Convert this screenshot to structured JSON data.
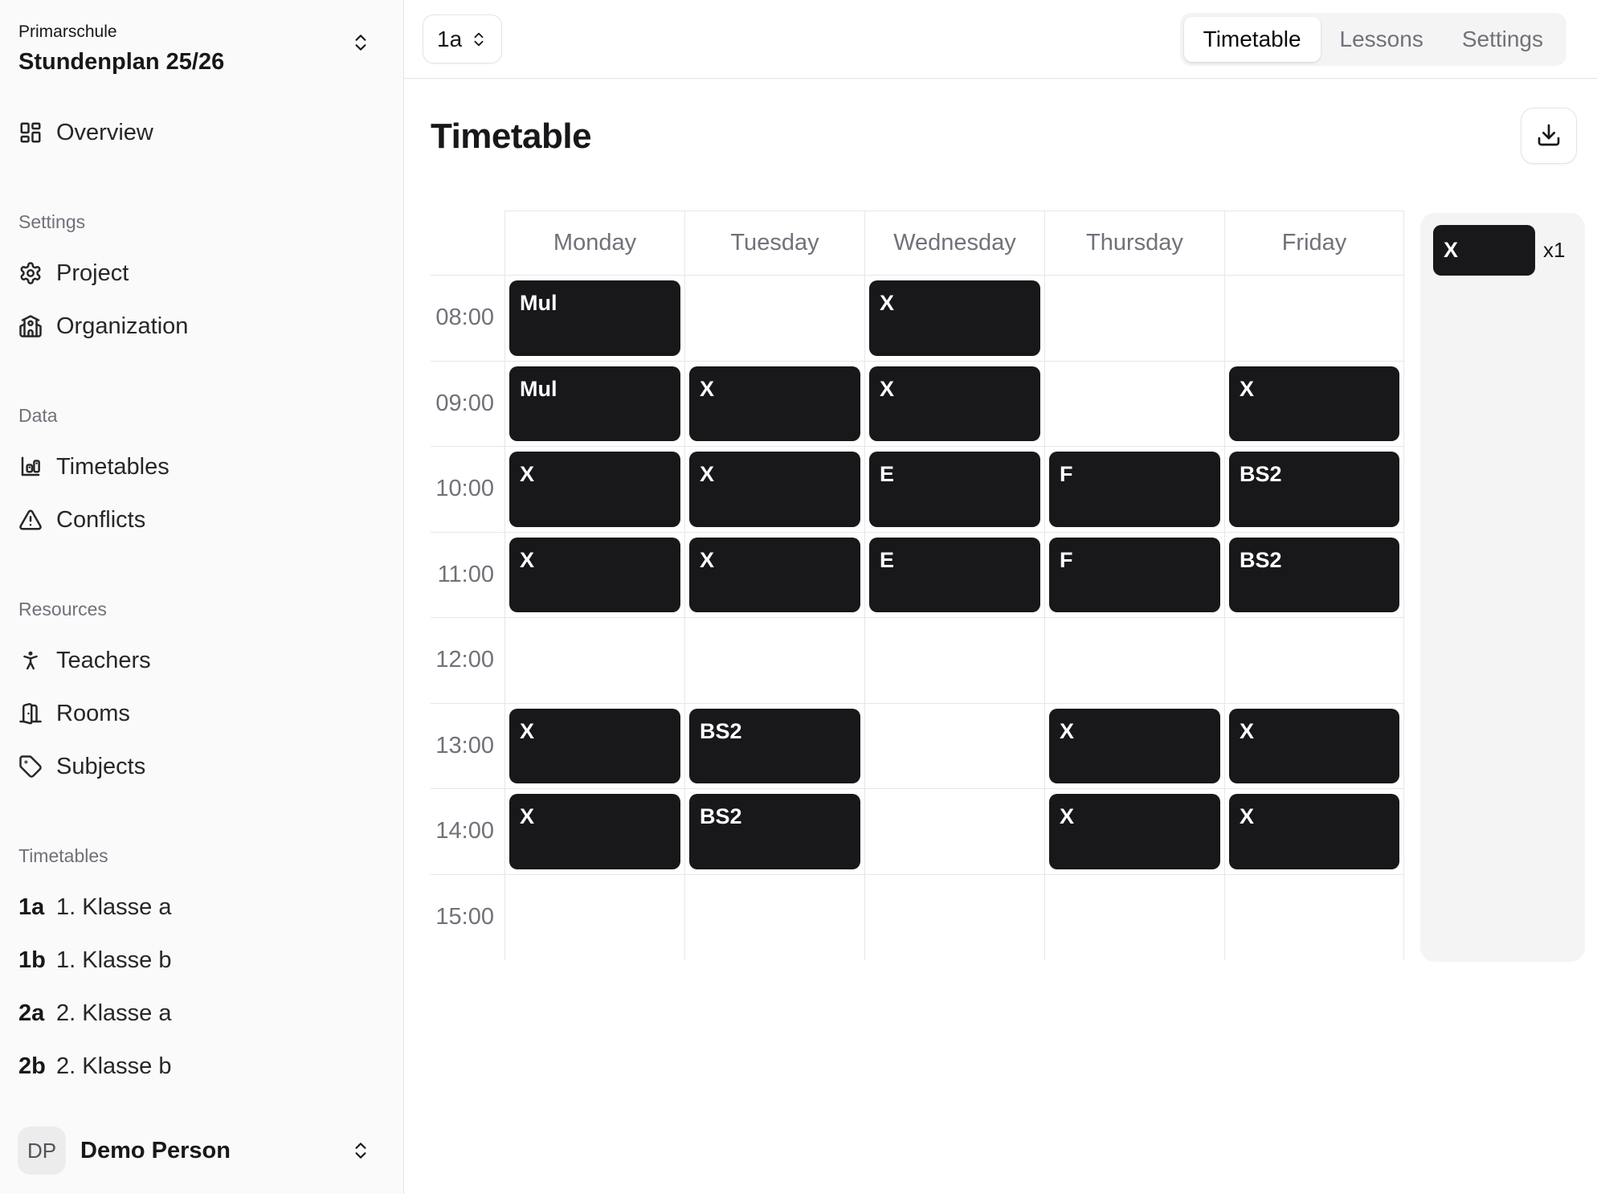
{
  "workspace": {
    "org_label": "Primarschule",
    "plan_name": "Stundenplan 25/26"
  },
  "sidebar": {
    "sections": [
      {
        "label": "",
        "items": [
          {
            "icon": "layout-dashboard",
            "label": "Overview"
          }
        ]
      },
      {
        "label": "Settings",
        "items": [
          {
            "icon": "settings-gear",
            "label": "Project"
          },
          {
            "icon": "school-building",
            "label": "Organization"
          }
        ]
      },
      {
        "label": "Data",
        "items": [
          {
            "icon": "bar-chart",
            "label": "Timetables"
          },
          {
            "icon": "warning-triangle",
            "label": "Conflicts"
          }
        ]
      },
      {
        "label": "Resources",
        "items": [
          {
            "icon": "person-standing",
            "label": "Teachers"
          },
          {
            "icon": "door-open",
            "label": "Rooms"
          },
          {
            "icon": "tag",
            "label": "Subjects"
          }
        ]
      },
      {
        "label": "Timetables",
        "items": [
          {
            "code": "1a",
            "label": "1. Klasse a"
          },
          {
            "code": "1b",
            "label": "1. Klasse b"
          },
          {
            "code": "2a",
            "label": "2. Klasse a"
          },
          {
            "code": "2b",
            "label": "2. Klasse b"
          }
        ]
      }
    ],
    "user": {
      "initials": "DP",
      "name": "Demo Person"
    }
  },
  "topbar": {
    "class_selector": "1a",
    "tabs": [
      {
        "label": "Timetable",
        "active": true
      },
      {
        "label": "Lessons",
        "active": false
      },
      {
        "label": "Settings",
        "active": false
      }
    ]
  },
  "main": {
    "title": "Timetable"
  },
  "timetable": {
    "days": [
      "Monday",
      "Tuesday",
      "Wednesday",
      "Thursday",
      "Friday"
    ],
    "rows": [
      {
        "time": "08:00",
        "cells": [
          "Mul",
          null,
          "X",
          null,
          null
        ]
      },
      {
        "time": "09:00",
        "cells": [
          "Mul",
          "X",
          "X",
          null,
          "X"
        ]
      },
      {
        "time": "10:00",
        "cells": [
          "X",
          "X",
          "E",
          "F",
          "BS2"
        ]
      },
      {
        "time": "11:00",
        "cells": [
          "X",
          "X",
          "E",
          "F",
          "BS2"
        ]
      },
      {
        "time": "12:00",
        "cells": [
          null,
          null,
          null,
          null,
          null
        ]
      },
      {
        "time": "13:00",
        "cells": [
          "X",
          "BS2",
          null,
          "X",
          "X"
        ]
      },
      {
        "time": "14:00",
        "cells": [
          "X",
          "BS2",
          null,
          "X",
          "X"
        ]
      },
      {
        "time": "15:00",
        "cells": [
          null,
          null,
          null,
          null,
          null
        ]
      }
    ]
  },
  "legend": {
    "items": [
      {
        "label": "X",
        "count": "x1"
      }
    ]
  },
  "colors": {
    "lesson_block": "#18181b",
    "grid_line": "#e7e7ea",
    "muted_text": "#71717a",
    "sidebar_bg": "#fafafa",
    "panel_bg": "#f4f4f5",
    "border": "#e4e4e7"
  }
}
